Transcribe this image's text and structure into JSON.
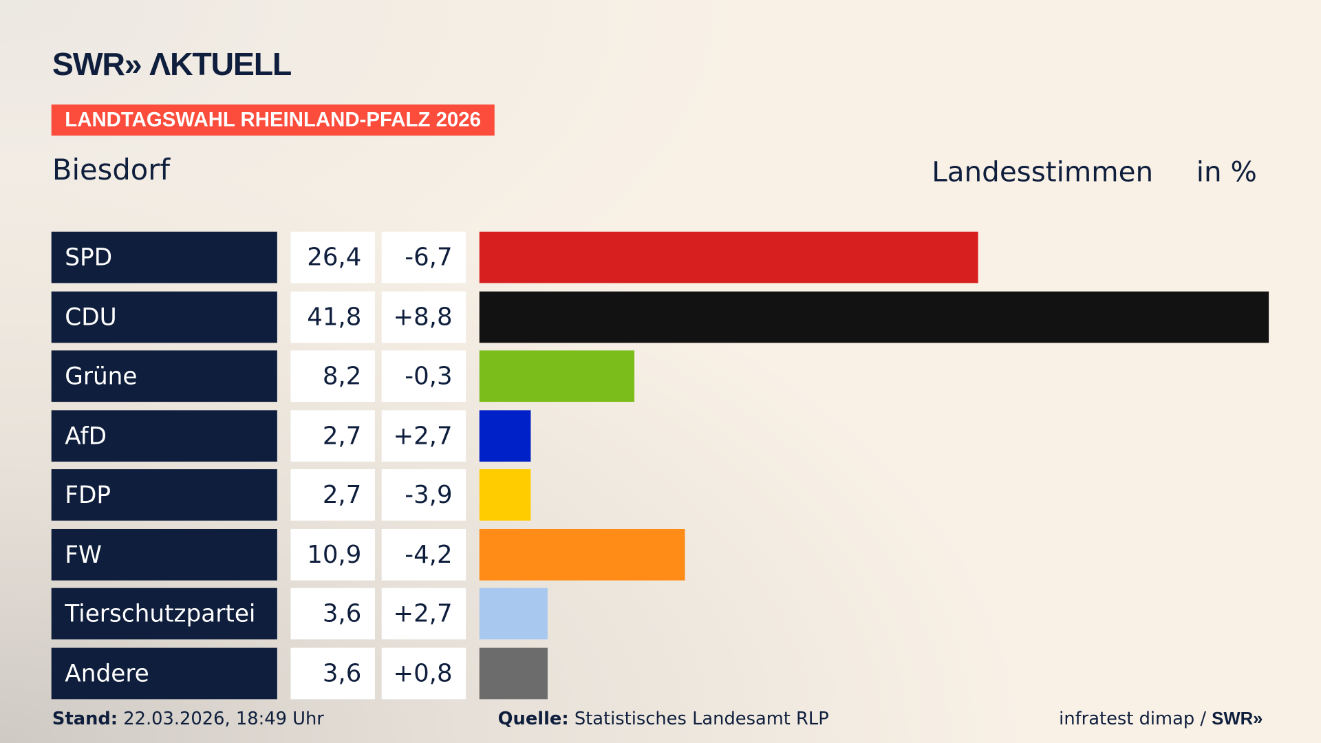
{
  "logo": "SWR» ΛKTUELL",
  "badge": "LANDTAGSWAHL RHEINLAND-PFALZ 2026",
  "location": "Biesdorf",
  "header_type": "Landesstimmen",
  "header_unit": "in %",
  "chart_data": {
    "type": "bar",
    "orientation": "horizontal",
    "categories": [
      "SPD",
      "CDU",
      "Grüne",
      "AfD",
      "FDP",
      "FW",
      "Tierschutzpartei",
      "Andere"
    ],
    "values": [
      26.4,
      41.8,
      8.2,
      2.7,
      2.7,
      10.9,
      3.6,
      3.6
    ],
    "value_labels": [
      "26,4",
      "41,8",
      "8,2",
      "2,7",
      "2,7",
      "10,9",
      "3,6",
      "3,6"
    ],
    "changes": [
      -6.7,
      8.8,
      -0.3,
      2.7,
      -3.9,
      -4.2,
      2.7,
      0.8
    ],
    "change_labels": [
      "-6,7",
      "+8,8",
      "-0,3",
      "+2,7",
      "-3,9",
      "-4,2",
      "+2,7",
      "+0,8"
    ],
    "colors": [
      "#d81f1f",
      "#121212",
      "#7bbd1b",
      "#0020c8",
      "#ffcc00",
      "#ff8c16",
      "#a9c8ef",
      "#6c6c6c"
    ],
    "unit": "%"
  },
  "footer": {
    "stand_label": "Stand:",
    "stand_value": "22.03.2026, 18:49 Uhr",
    "source_label": "Quelle:",
    "source_value": "Statistisches Landesamt RLP",
    "credit": "infratest dimap / ",
    "credit_logo": "SWR»"
  }
}
